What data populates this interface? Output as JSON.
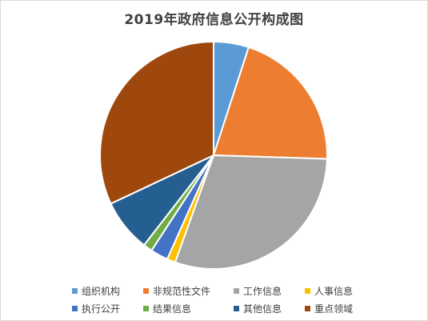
{
  "chart_data": {
    "type": "pie",
    "title": "2019年政府信息公开构成图",
    "categories": [
      "组织机构",
      "非规范性文件",
      "工作信息",
      "人事信息",
      "执行公开",
      "结果信息",
      "其他信息",
      "重点领域"
    ],
    "values": [
      5,
      20.5,
      30,
      1.2,
      2.5,
      1.3,
      7.5,
      32
    ],
    "colors": [
      "#5b9bd5",
      "#ed7d31",
      "#a5a5a5",
      "#ffc000",
      "#4472c4",
      "#70ad47",
      "#255e91",
      "#9e480e"
    ],
    "start_angle_deg": 0,
    "legend_position": "bottom"
  }
}
